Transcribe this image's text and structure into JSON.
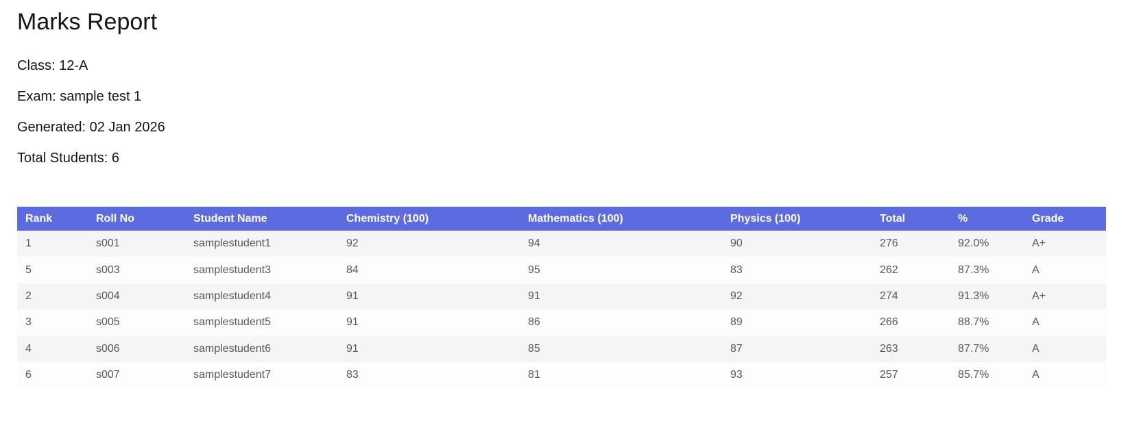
{
  "colors": {
    "header_bg": "#5d6be1",
    "header_text": "#ffffff",
    "row_stripe": "#f5f5f5",
    "row_plain": "#fdfdfd",
    "body_text": "#585858",
    "heading_text": "#161616",
    "page_bg": "#ffffff"
  },
  "report": {
    "title": "Marks Report",
    "meta_lines": [
      "Class: 12-A",
      "Exam: sample test 1",
      "Generated: 02 Jan 2026",
      "Total Students: 6"
    ]
  },
  "table": {
    "columns": [
      "Rank",
      "Roll No",
      "Student Name",
      "Chemistry (100)",
      "Mathematics (100)",
      "Physics (100)",
      "Total",
      "%",
      "Grade"
    ],
    "rows": [
      [
        "1",
        "s001",
        "samplestudent1",
        "92",
        "94",
        "90",
        "276",
        "92.0%",
        "A+"
      ],
      [
        "5",
        "s003",
        "samplestudent3",
        "84",
        "95",
        "83",
        "262",
        "87.3%",
        "A"
      ],
      [
        "2",
        "s004",
        "samplestudent4",
        "91",
        "91",
        "92",
        "274",
        "91.3%",
        "A+"
      ],
      [
        "3",
        "s005",
        "samplestudent5",
        "91",
        "86",
        "89",
        "266",
        "88.7%",
        "A"
      ],
      [
        "4",
        "s006",
        "samplestudent6",
        "91",
        "85",
        "87",
        "263",
        "87.7%",
        "A"
      ],
      [
        "6",
        "s007",
        "samplestudent7",
        "83",
        "81",
        "93",
        "257",
        "85.7%",
        "A"
      ]
    ]
  }
}
